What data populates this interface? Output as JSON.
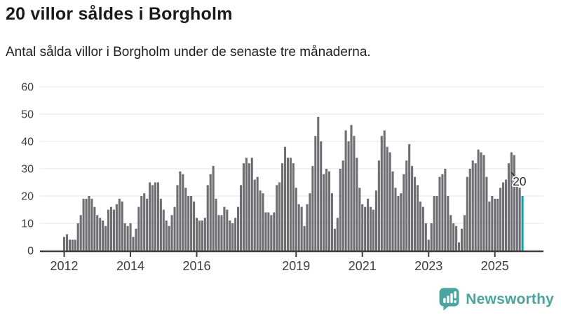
{
  "header": {
    "title": "20 villor såldes i Borgholm",
    "subtitle": "Antal sålda villor i Borgholm under de senaste tre månaderna."
  },
  "chart_data": {
    "type": "bar",
    "title": "20 villor såldes i Borgholm",
    "subtitle": "Antal sålda villor i Borgholm under de senaste tre månaderna.",
    "unit": "sålda villor per månad (rullande tre månader)",
    "x_start": "2012-01",
    "x_freq": "monthly",
    "ylim": [
      0,
      60
    ],
    "yticks": [
      0,
      10,
      20,
      30,
      40,
      50,
      60
    ],
    "grid": true,
    "bar_color": "#6e6e73",
    "axis_color": "#3f3f3f",
    "grid_color": "#e4e4e4",
    "tick_label_color": "#3d3d3d",
    "xticks": [
      {
        "label": "2012",
        "month_index": 0
      },
      {
        "label": "2014",
        "month_index": 24
      },
      {
        "label": "2016",
        "month_index": 48
      },
      {
        "label": "2019",
        "month_index": 84
      },
      {
        "label": "2021",
        "month_index": 108
      },
      {
        "label": "2023",
        "month_index": 132
      },
      {
        "label": "2025",
        "month_index": 156
      }
    ],
    "values": [
      5,
      6,
      4,
      4,
      4,
      10,
      13,
      19,
      19,
      20,
      19,
      16,
      13,
      12,
      11,
      9,
      15,
      16,
      15,
      17,
      19,
      18,
      10,
      9,
      10,
      5,
      8,
      16,
      20,
      21,
      19,
      25,
      24,
      25,
      25,
      19,
      15,
      11,
      9,
      13,
      16,
      24,
      29,
      28,
      23,
      20,
      20,
      18,
      12,
      11,
      11,
      12,
      24,
      28,
      31,
      19,
      13,
      13,
      16,
      15,
      11,
      10,
      12,
      16,
      24,
      32,
      34,
      32,
      34,
      26,
      27,
      22,
      21,
      14,
      14,
      13,
      14,
      24,
      25,
      32,
      38,
      34,
      34,
      32,
      23,
      17,
      16,
      9,
      17,
      21,
      31,
      42,
      49,
      40,
      28,
      30,
      29,
      21,
      8,
      12,
      30,
      33,
      44,
      40,
      46,
      42,
      34,
      23,
      17,
      16,
      19,
      16,
      15,
      22,
      33,
      42,
      44,
      38,
      36,
      29,
      23,
      20,
      21,
      28,
      33,
      39,
      31,
      27,
      24,
      18,
      16,
      10,
      4,
      10,
      20,
      20,
      27,
      28,
      30,
      20,
      13,
      10,
      9,
      3,
      8,
      13,
      27,
      30,
      33,
      32,
      37,
      36,
      35,
      27,
      18,
      20,
      19,
      19,
      23,
      25,
      26,
      32,
      36,
      35,
      26,
      23,
      20
    ],
    "highlight": {
      "index": 166,
      "value": 20,
      "label": "20",
      "color": "#169fa2",
      "label_color": "#2b2b2b"
    }
  },
  "footer": {
    "brand": "Newsworthy",
    "brand_color": "#4aa49f",
    "icon": "newsworthy-bubble-chart-icon"
  }
}
